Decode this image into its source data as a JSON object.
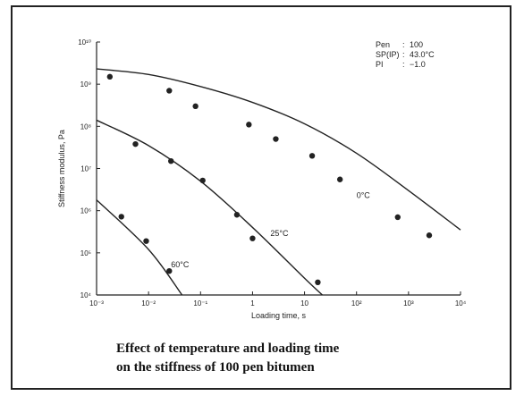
{
  "caption": {
    "line1": "Effect of temperature and loading time",
    "line2": "on the stiffness of 100 pen bitumen"
  },
  "chart_data": {
    "type": "line",
    "xlabel": "Loading time, s",
    "ylabel": "Stiffness modulus, Pa",
    "xscale": "log",
    "yscale": "log",
    "xlim": [
      0.001,
      10000
    ],
    "ylim": [
      10000,
      10000000000
    ],
    "x_ticks": [
      {
        "value": 0.001,
        "label": "10⁻³"
      },
      {
        "value": 0.01,
        "label": "10⁻²"
      },
      {
        "value": 0.1,
        "label": "10⁻¹"
      },
      {
        "value": 1,
        "label": "1"
      },
      {
        "value": 10,
        "label": "10"
      },
      {
        "value": 100,
        "label": "10²"
      },
      {
        "value": 1000,
        "label": "10³"
      },
      {
        "value": 10000,
        "label": "10⁴"
      }
    ],
    "y_ticks": [
      {
        "value": 10000,
        "label": "10⁴"
      },
      {
        "value": 100000,
        "label": "10⁵"
      },
      {
        "value": 1000000,
        "label": "10⁶"
      },
      {
        "value": 10000000,
        "label": "10⁷"
      },
      {
        "value": 100000000,
        "label": "10⁸"
      },
      {
        "value": 1000000000,
        "label": "10⁹"
      },
      {
        "value": 10000000000,
        "label": "10¹⁰"
      }
    ],
    "legend": {
      "placement": "top-right",
      "rows": [
        {
          "key": "Pen",
          "value": "100"
        },
        {
          "key": "SP(IP)",
          "value": "43.0°C"
        },
        {
          "key": "PI",
          "value": "−1.0"
        }
      ]
    },
    "series": [
      {
        "name": "0°C",
        "curve": [
          [
            0.001,
            2300000000
          ],
          [
            0.01,
            1700000000
          ],
          [
            0.1,
            880000000
          ],
          [
            1,
            370000000
          ],
          [
            10,
            115000000
          ],
          [
            100,
            23000000
          ],
          [
            1000,
            3000000
          ],
          [
            10000,
            350000
          ]
        ],
        "points": [
          [
            0.0018,
            1500000000
          ],
          [
            0.025,
            700000000
          ],
          [
            0.08,
            300000000
          ],
          [
            0.85,
            110000000
          ],
          [
            2.8,
            50000000
          ],
          [
            14,
            20000000
          ],
          [
            48,
            5500000
          ],
          [
            620,
            700000
          ],
          [
            2500,
            260000
          ]
        ]
      },
      {
        "name": "25°C",
        "curve": [
          [
            0.001,
            140000000
          ],
          [
            0.01,
            35000000
          ],
          [
            0.1,
            5000000
          ],
          [
            1,
            400000
          ],
          [
            10,
            25000
          ],
          [
            22,
            10000
          ]
        ],
        "points": [
          [
            0.0056,
            38000000
          ],
          [
            0.027,
            15000000
          ],
          [
            0.11,
            5200000
          ],
          [
            0.5,
            800000
          ],
          [
            1.0,
            220000
          ],
          [
            18,
            20000
          ]
        ]
      },
      {
        "name": "60°C",
        "curve": [
          [
            0.001,
            1800000
          ],
          [
            0.01,
            120000
          ],
          [
            0.044,
            10000
          ]
        ],
        "points": [
          [
            0.003,
            720000
          ],
          [
            0.009,
            190000
          ],
          [
            0.025,
            37000
          ]
        ]
      }
    ],
    "curve_labels": [
      {
        "text": "0°C",
        "x": 100,
        "y": 2000000
      },
      {
        "text": "25°C",
        "x": 2.2,
        "y": 250000
      },
      {
        "text": "60°C",
        "x": 0.027,
        "y": 45000
      }
    ]
  }
}
